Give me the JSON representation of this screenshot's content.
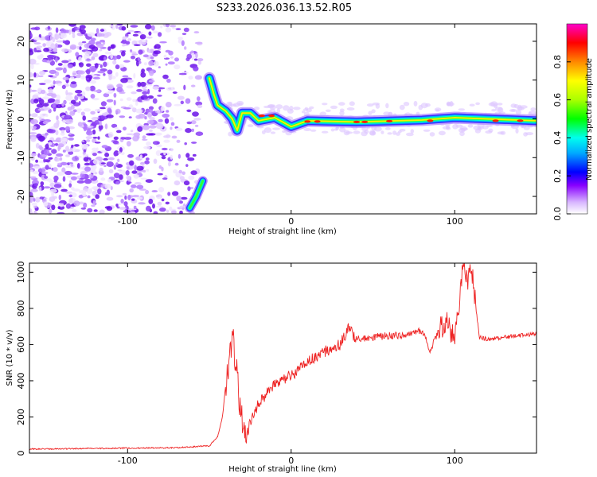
{
  "title": "S233.2026.036.13.52.R05",
  "colors": {
    "trace": "#ee2222",
    "speckle": "#7a22ee",
    "background": "#ffffff"
  },
  "chart_data": [
    {
      "type": "heatmap",
      "name": "spectrogram",
      "xlabel": "Height of straight line (km)",
      "ylabel": "Frequency (Hz)",
      "xlim": [
        -160,
        150
      ],
      "ylim": [
        -24.5,
        24.5
      ],
      "xticks": [
        -100,
        0,
        100
      ],
      "yticks": [
        -20,
        -10,
        0,
        10,
        20
      ],
      "ridge": {
        "description_points": [
          {
            "x": -50,
            "y": 10.5
          },
          {
            "x": -47,
            "y": 6
          },
          {
            "x": -45,
            "y": 3.5
          },
          {
            "x": -40,
            "y": 2
          },
          {
            "x": -36,
            "y": 0
          },
          {
            "x": -33,
            "y": -3
          },
          {
            "x": -30,
            "y": 1.5
          },
          {
            "x": -25,
            "y": 1.5
          },
          {
            "x": -20,
            "y": -0.5
          },
          {
            "x": -10,
            "y": 0.3
          },
          {
            "x": 0,
            "y": -2
          },
          {
            "x": 10,
            "y": -0.5
          },
          {
            "x": 40,
            "y": -0.8
          },
          {
            "x": 80,
            "y": -0.3
          },
          {
            "x": 100,
            "y": 0.3
          },
          {
            "x": 150,
            "y": -0.5
          }
        ],
        "lower_branch": [
          {
            "x": -62,
            "y": -23
          },
          {
            "x": -58,
            "y": -20
          },
          {
            "x": -54,
            "y": -16
          }
        ]
      },
      "colorbar": {
        "label": "Normalized spectral amplitude",
        "range": [
          0,
          1
        ],
        "ticks": [
          "0.0",
          "0.2",
          "0.4",
          "0.6",
          "0.8"
        ]
      }
    },
    {
      "type": "line",
      "name": "snr",
      "xlabel": "Height of straight line (km)",
      "ylabel": "SNR (10 * v/v)",
      "xlim": [
        -160,
        150
      ],
      "ylim": [
        0,
        1050
      ],
      "xticks": [
        -100,
        0,
        100
      ],
      "yticks": [
        0,
        200,
        400,
        600,
        800,
        1000
      ],
      "series": [
        {
          "name": "SNR",
          "x": [
            -160,
            -130,
            -100,
            -70,
            -50,
            -45,
            -42,
            -40,
            -37,
            -35,
            -32,
            -28,
            -25,
            -20,
            -15,
            -10,
            -5,
            0,
            5,
            10,
            20,
            30,
            35,
            40,
            50,
            60,
            70,
            80,
            85,
            90,
            95,
            100,
            103,
            105,
            108,
            110,
            115,
            120,
            130,
            140,
            150
          ],
          "y": [
            22,
            25,
            28,
            30,
            40,
            90,
            200,
            380,
            580,
            600,
            330,
            60,
            180,
            270,
            330,
            380,
            410,
            430,
            460,
            510,
            560,
            600,
            690,
            630,
            640,
            650,
            650,
            680,
            560,
            680,
            740,
            610,
            840,
            1050,
            920,
            1050,
            640,
            630,
            640,
            650,
            660
          ]
        }
      ]
    }
  ]
}
